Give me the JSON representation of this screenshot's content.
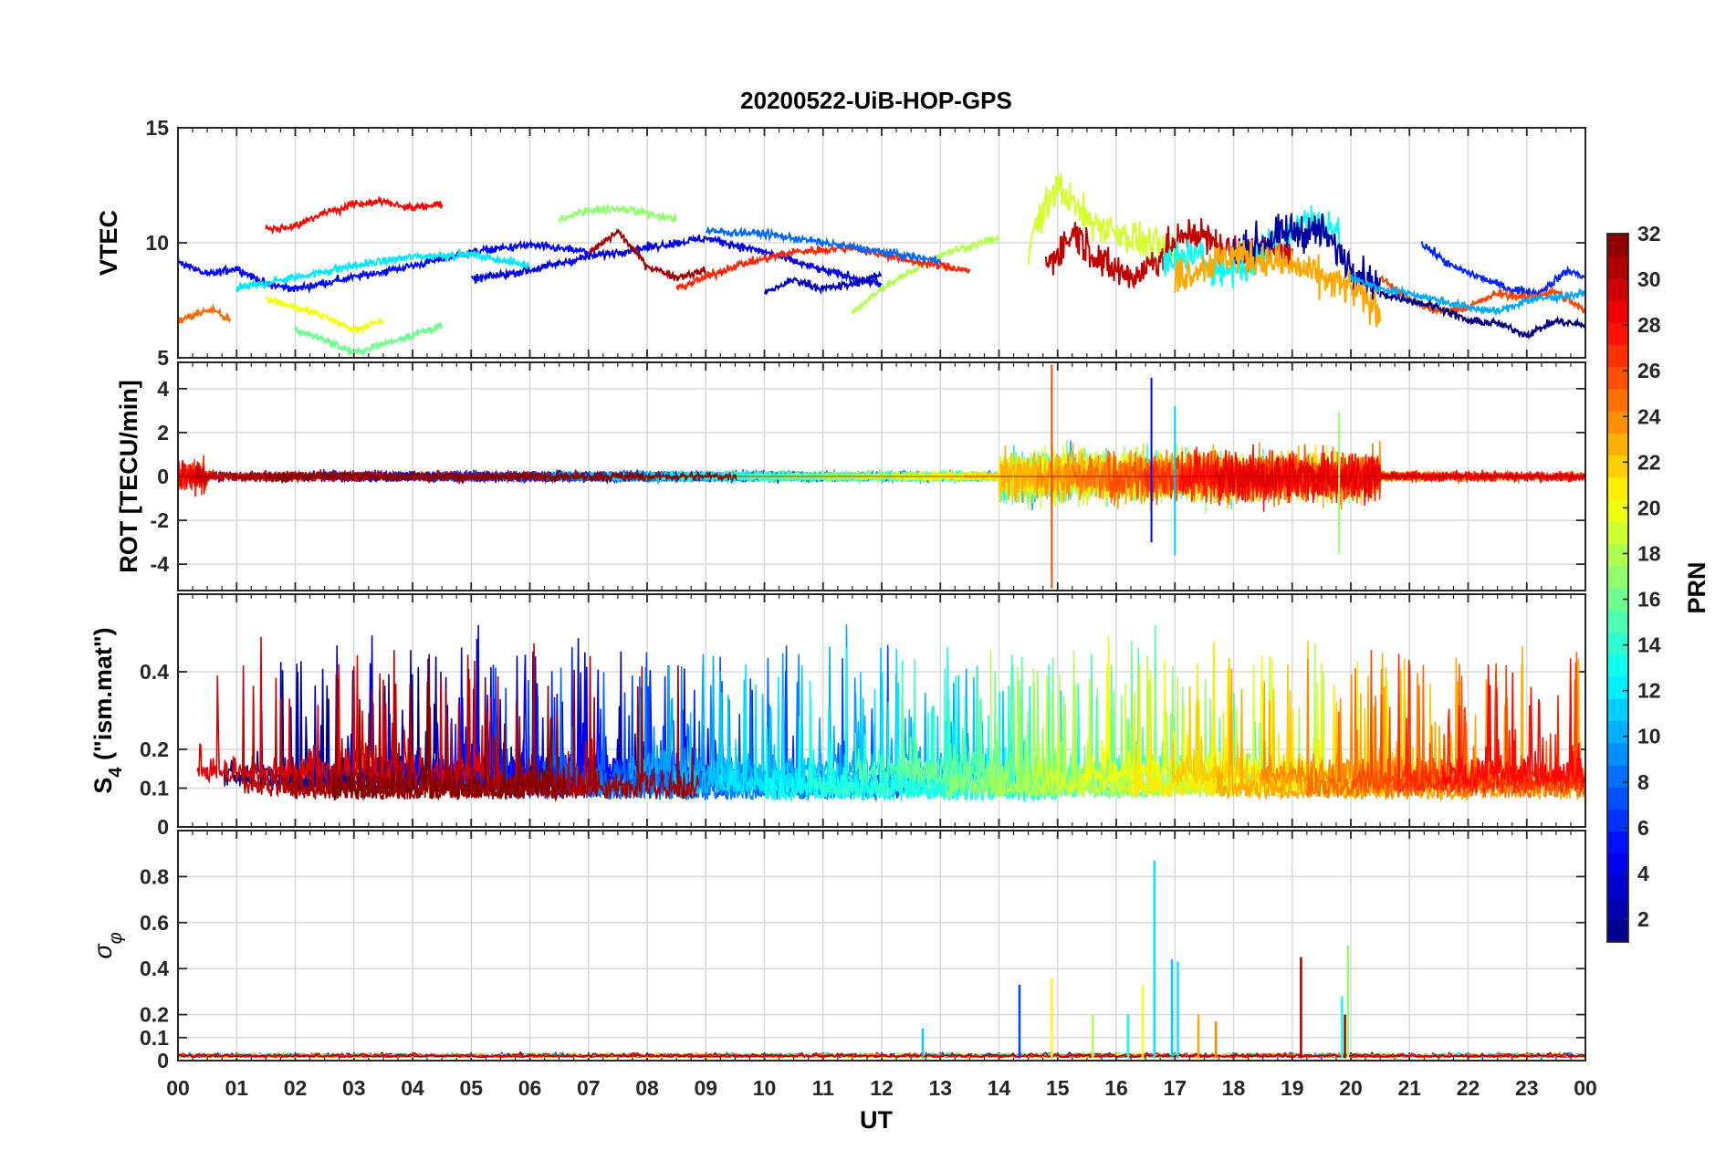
{
  "chart_data": {
    "type": "line",
    "title": "20200522-UiB-HOP-GPS",
    "xlabel": "UT",
    "x_ticks": [
      "00",
      "01",
      "02",
      "03",
      "04",
      "05",
      "06",
      "07",
      "08",
      "09",
      "10",
      "11",
      "12",
      "13",
      "14",
      "15",
      "16",
      "17",
      "18",
      "19",
      "20",
      "21",
      "22",
      "23",
      "00"
    ],
    "xlim": [
      0,
      24
    ],
    "colorbar": {
      "label": "PRN",
      "range": [
        1,
        32
      ],
      "ticks": [
        "2",
        "4",
        "6",
        "8",
        "10",
        "12",
        "14",
        "16",
        "18",
        "20",
        "22",
        "24",
        "26",
        "28",
        "30",
        "32"
      ],
      "colormap": "jet"
    },
    "panels": [
      {
        "ylabel": "VTEC",
        "ylim": [
          5,
          15
        ],
        "y_ticks": [
          "5",
          "10",
          "15"
        ],
        "series": [
          {
            "name": "PRN 28",
            "x": [
              1.5,
              2.0,
              2.5,
              3.0,
              3.5,
              4.0,
              4.5
            ],
            "values": [
              10.6,
              10.7,
              11.3,
              11.7,
              11.8,
              11.5,
              11.7
            ]
          },
          {
            "name": "PRN 17",
            "x": [
              6.5,
              7.0,
              7.5,
              8.0,
              8.5
            ],
            "values": [
              11.0,
              11.4,
              11.5,
              11.3,
              11.0
            ]
          },
          {
            "name": "PRN 5",
            "x": [
              0.0,
              0.5,
              1.0,
              1.5,
              2.0,
              3.0,
              4.0,
              5.0,
              6.0,
              7.0
            ],
            "values": [
              9.2,
              8.6,
              8.9,
              8.2,
              8.0,
              8.5,
              9.0,
              9.6,
              9.9,
              9.6
            ]
          },
          {
            "name": "PRN 12",
            "x": [
              1.0,
              2.0,
              3.0,
              4.0,
              5.0,
              6.0
            ],
            "values": [
              8.0,
              8.5,
              9.0,
              9.4,
              9.5,
              9.0
            ]
          },
          {
            "name": "PRN 20",
            "x": [
              1.5,
              2.0,
              2.5,
              3.0,
              3.5
            ],
            "values": [
              7.6,
              7.2,
              6.8,
              6.2,
              6.6
            ]
          },
          {
            "name": "PRN 16",
            "x": [
              2.0,
              2.5,
              3.0,
              3.5,
              4.0,
              4.5
            ],
            "values": [
              6.2,
              5.8,
              5.2,
              5.6,
              6.0,
              6.4
            ]
          },
          {
            "name": "PRN 4",
            "x": [
              5.0,
              6.0,
              7.0,
              8.0,
              9.0,
              10.0,
              11.0,
              12.0
            ],
            "values": [
              8.4,
              8.8,
              9.4,
              9.8,
              10.2,
              9.6,
              8.8,
              8.2
            ]
          },
          {
            "name": "PRN 31",
            "x": [
              7.0,
              7.5,
              8.0,
              8.5,
              9.0
            ],
            "values": [
              9.5,
              10.5,
              9.0,
              8.5,
              8.8
            ]
          },
          {
            "name": "PRN 25",
            "x": [
              0.0,
              0.3,
              0.6,
              0.9
            ],
            "values": [
              6.6,
              6.9,
              7.1,
              6.6
            ]
          },
          {
            "name": "PRN 3",
            "x": [
              10.0,
              10.5,
              11.0,
              11.5,
              12.0
            ],
            "values": [
              7.8,
              8.4,
              8.0,
              8.2,
              8.6
            ]
          },
          {
            "name": "PRN 18",
            "x": [
              11.5,
              12.0,
              13.0,
              14.0
            ],
            "values": [
              7.0,
              8.0,
              9.5,
              10.2
            ]
          },
          {
            "name": "PRN 27",
            "x": [
              8.5,
              9.5,
              10.5,
              11.5,
              12.5,
              13.5
            ],
            "values": [
              8.0,
              9.0,
              9.6,
              9.8,
              9.2,
              8.8
            ]
          },
          {
            "name": "PRN 8",
            "x": [
              9.0,
              10.0,
              11.0,
              12.0,
              13.0
            ],
            "values": [
              10.5,
              10.4,
              10.0,
              9.6,
              9.2
            ]
          },
          {
            "name": "PRN 19",
            "x": [
              14.5,
              15.0,
              15.5,
              16.0,
              16.5,
              17.0
            ],
            "values": [
              10.0,
              12.5,
              11.0,
              10.5,
              10.0,
              9.5
            ]
          },
          {
            "name": "PRN 30",
            "x": [
              14.8,
              15.3,
              15.8,
              16.3,
              16.8,
              17.3,
              18.0,
              19.0
            ],
            "values": [
              9.0,
              10.5,
              9.0,
              8.5,
              9.5,
              10.5,
              9.5,
              9.8
            ]
          },
          {
            "name": "PRN 13",
            "x": [
              16.8,
              17.3,
              17.8,
              18.3,
              18.8,
              19.3,
              19.8
            ],
            "values": [
              9.0,
              9.5,
              8.8,
              9.0,
              10.5,
              11.0,
              10.5
            ]
          },
          {
            "name": "PRN 2",
            "x": [
              18.0,
              18.5,
              19.0,
              19.5,
              20.0,
              20.5
            ],
            "values": [
              9.5,
              10.0,
              10.5,
              10.5,
              9.0,
              8.0
            ]
          },
          {
            "name": "PRN 23",
            "x": [
              17.0,
              18.0,
              19.0,
              20.0,
              20.5
            ],
            "values": [
              8.5,
              9.5,
              9.0,
              8.0,
              7.0
            ]
          },
          {
            "name": "PRN 6",
            "x": [
              21.2,
              21.7,
              22.2,
              22.7,
              23.2,
              23.7,
              24.0
            ],
            "values": [
              10.0,
              9.0,
              8.5,
              8.0,
              7.8,
              8.8,
              8.5
            ]
          },
          {
            "name": "PRN 26",
            "x": [
              20.5,
              21.0,
              21.5,
              22.0,
              22.5,
              23.0,
              23.5,
              24.0
            ],
            "values": [
              8.5,
              7.5,
              7.0,
              7.2,
              7.8,
              7.6,
              7.9,
              7.0
            ]
          },
          {
            "name": "PRN 1",
            "x": [
              20.5,
              21.5,
              22.0,
              22.5,
              23.0,
              23.5,
              24.0
            ],
            "values": [
              7.8,
              7.2,
              6.6,
              6.5,
              6.0,
              6.6,
              6.4
            ]
          },
          {
            "name": "PRN 10",
            "x": [
              20.0,
              20.5,
              21.0,
              21.5,
              22.0,
              22.5,
              23.0,
              24.0
            ],
            "values": [
              8.5,
              8.0,
              7.8,
              7.5,
              7.2,
              7.0,
              7.5,
              7.8
            ]
          }
        ]
      },
      {
        "ylabel": "ROT [TECU/min]",
        "ylim": [
          -5.2,
          5.2
        ],
        "y_ticks": [
          "-4",
          "-2",
          "0",
          "2",
          "4"
        ],
        "annotations_peaks": [
          {
            "x": 14.9,
            "max": 5.1,
            "min": -5.1
          },
          {
            "x": 16.6,
            "max": 4.5,
            "min": -3.0
          },
          {
            "x": 17.0,
            "max": 3.2,
            "min": -3.6
          },
          {
            "x": 19.8,
            "max": 2.9,
            "min": -3.5
          }
        ]
      },
      {
        "ylabel": "S₄ (\"ism.mat\")",
        "ylabel_main": "S",
        "ylabel_sub": "4",
        "ylabel_rest": " (\"ism.mat\")",
        "ylim": [
          0,
          0.6
        ],
        "y_ticks": [
          "0",
          "0.1",
          "0.2",
          "0.4"
        ],
        "y_tick_values": [
          0,
          0.1,
          0.2,
          0.4
        ]
      },
      {
        "ylabel": "σ φ",
        "ylabel_main": "σ",
        "ylabel_sub": "φ",
        "ylim": [
          0,
          1
        ],
        "y_ticks": [
          "0",
          "0.1",
          "0.2",
          "0.4",
          "0.6",
          "0.8"
        ],
        "y_tick_values": [
          0,
          0.1,
          0.2,
          0.4,
          0.6,
          0.8
        ],
        "spikes": [
          {
            "x": 14.35,
            "value": 0.33,
            "prn": 7
          },
          {
            "x": 14.9,
            "value": 0.36,
            "prn": 20
          },
          {
            "x": 15.6,
            "value": 0.2,
            "prn": 18
          },
          {
            "x": 16.2,
            "value": 0.2,
            "prn": 13
          },
          {
            "x": 16.45,
            "value": 0.33,
            "prn": 20
          },
          {
            "x": 16.65,
            "value": 0.87,
            "prn": 12
          },
          {
            "x": 16.95,
            "value": 0.44,
            "prn": 11
          },
          {
            "x": 17.05,
            "value": 0.43,
            "prn": 12
          },
          {
            "x": 17.4,
            "value": 0.2,
            "prn": 23
          },
          {
            "x": 17.7,
            "value": 0.17,
            "prn": 24
          },
          {
            "x": 12.7,
            "value": 0.14,
            "prn": 11
          },
          {
            "x": 19.15,
            "value": 0.45,
            "prn": 31
          },
          {
            "x": 19.85,
            "value": 0.28,
            "prn": 13
          },
          {
            "x": 19.95,
            "value": 0.5,
            "prn": 17
          },
          {
            "x": 19.9,
            "value": 0.2,
            "prn": 31
          }
        ]
      }
    ]
  }
}
